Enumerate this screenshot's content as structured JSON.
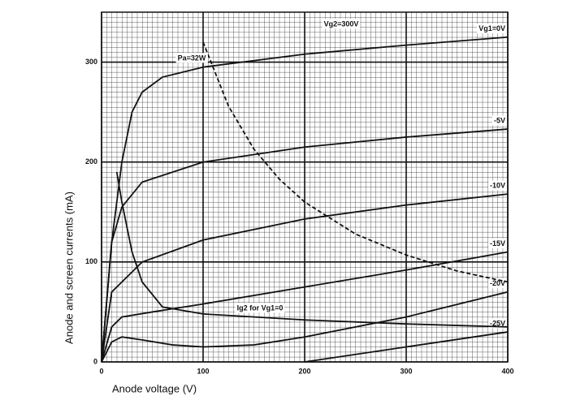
{
  "chart_data": {
    "type": "line",
    "x_label": "Anode voltage (V)",
    "y_label": "Anode and screen currents (mA)",
    "annotations": [
      "Vg2=300V"
    ],
    "xlim": [
      0,
      400
    ],
    "xticks": [
      0,
      100,
      200,
      300,
      400
    ],
    "ylim": [
      0,
      350
    ],
    "yticks": [
      0,
      100,
      200,
      300
    ],
    "grid": true,
    "series": [
      {
        "name": "Vg1=0V",
        "color": "#111111",
        "dashed": false,
        "x": [
          0,
          10,
          20,
          30,
          40,
          60,
          100,
          200,
          300,
          400
        ],
        "values": [
          0,
          120,
          200,
          250,
          270,
          285,
          295,
          308,
          317,
          325
        ]
      },
      {
        "name": "-5V",
        "color": "#111111",
        "dashed": false,
        "x": [
          0,
          10,
          20,
          40,
          100,
          200,
          300,
          400
        ],
        "values": [
          0,
          120,
          155,
          180,
          200,
          215,
          225,
          233
        ]
      },
      {
        "name": "-10V",
        "color": "#111111",
        "dashed": false,
        "x": [
          0,
          10,
          20,
          40,
          100,
          200,
          300,
          400
        ],
        "values": [
          0,
          70,
          80,
          100,
          122,
          143,
          157,
          168
        ]
      },
      {
        "name": "-15V",
        "color": "#111111",
        "dashed": false,
        "x": [
          0,
          10,
          20,
          50,
          100,
          200,
          300,
          400
        ],
        "values": [
          0,
          35,
          45,
          50,
          58,
          75,
          92,
          110
        ]
      },
      {
        "name": "-20V",
        "color": "#111111",
        "dashed": false,
        "x": [
          0,
          10,
          20,
          40,
          70,
          100,
          150,
          200,
          300,
          400
        ],
        "values": [
          0,
          20,
          25,
          22,
          17,
          15,
          17,
          25,
          45,
          70
        ]
      },
      {
        "name": "-25V",
        "color": "#111111",
        "dashed": false,
        "x": [
          200,
          300,
          400
        ],
        "values": [
          0,
          15,
          30
        ]
      },
      {
        "name": "Ig2 for Vg1=0",
        "color": "#111111",
        "dashed": false,
        "x": [
          15,
          20,
          30,
          40,
          60,
          100,
          200,
          300,
          400
        ],
        "values": [
          190,
          160,
          110,
          80,
          55,
          48,
          42,
          38,
          35
        ]
      },
      {
        "name": "Pa=32W",
        "color": "#111111",
        "dashed": true,
        "x": [
          100,
          125,
          150,
          175,
          200,
          250,
          300,
          350,
          400
        ],
        "values": [
          320,
          256,
          213,
          183,
          160,
          128,
          107,
          91,
          80
        ]
      }
    ]
  }
}
